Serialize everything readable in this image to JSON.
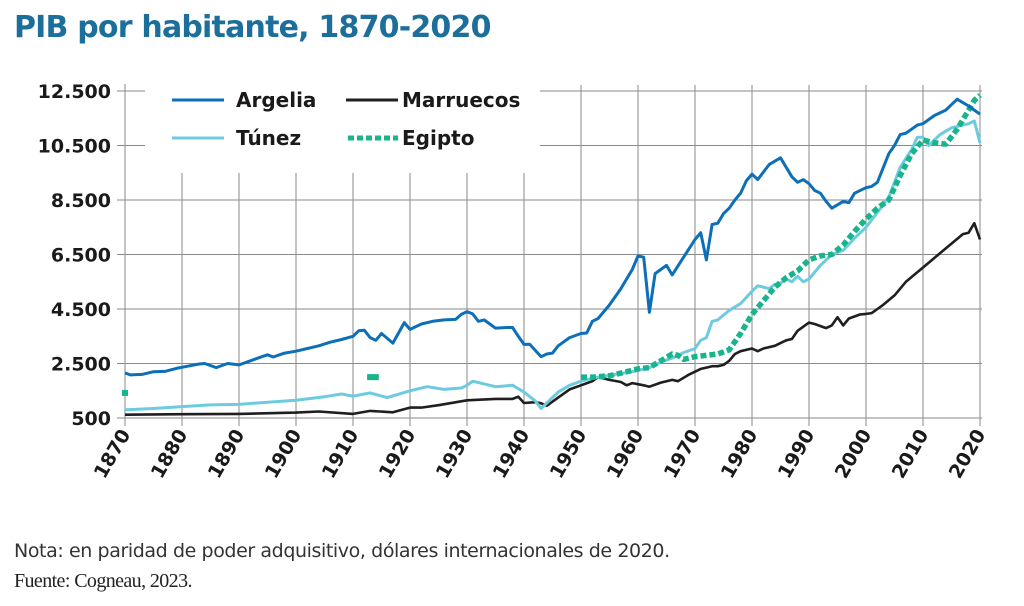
{
  "title": "PIB por habitante, 1870-2020",
  "note": "Nota: en paridad de poder adquisitivo, dólares internacionales de 2020.",
  "source": "Fuente: Cogneau, 2023.",
  "chart_data": {
    "type": "line",
    "title": "PIB por habitante, 1870-2020",
    "xlabel": "",
    "ylabel": "",
    "xlim": [
      1870,
      2020
    ],
    "ylim": [
      500,
      12500
    ],
    "grid": true,
    "legend_position": "top-left",
    "x_ticks": [
      1870,
      1880,
      1890,
      1900,
      1910,
      1920,
      1930,
      1940,
      1950,
      1960,
      1970,
      1980,
      1990,
      2000,
      2010,
      2020
    ],
    "x_tick_labels": [
      "1870",
      "1880",
      "1890",
      "1900",
      "1910",
      "1920",
      "1930",
      "1940",
      "1950",
      "1960",
      "1970",
      "1980",
      "1990",
      "2000",
      "2010",
      "2020"
    ],
    "y_ticks": [
      500,
      2500,
      4500,
      6500,
      8500,
      10500,
      12500
    ],
    "y_tick_labels": [
      "500",
      "2.500",
      "4.500",
      "6.500",
      "8.500",
      "10.500",
      "12.500"
    ],
    "series": [
      {
        "name": "Argelia",
        "color": "#0d6fb8",
        "style": "solid",
        "points": [
          [
            1870,
            2150
          ],
          [
            1871,
            2080
          ],
          [
            1873,
            2100
          ],
          [
            1875,
            2200
          ],
          [
            1877,
            2210
          ],
          [
            1879,
            2320
          ],
          [
            1881,
            2400
          ],
          [
            1883,
            2480
          ],
          [
            1884,
            2500
          ],
          [
            1886,
            2350
          ],
          [
            1888,
            2500
          ],
          [
            1890,
            2450
          ],
          [
            1892,
            2600
          ],
          [
            1894,
            2750
          ],
          [
            1895,
            2820
          ],
          [
            1896,
            2740
          ],
          [
            1898,
            2880
          ],
          [
            1900,
            2950
          ],
          [
            1902,
            3050
          ],
          [
            1904,
            3150
          ],
          [
            1906,
            3280
          ],
          [
            1908,
            3380
          ],
          [
            1910,
            3500
          ],
          [
            1911,
            3700
          ],
          [
            1912,
            3720
          ],
          [
            1913,
            3450
          ],
          [
            1914,
            3350
          ],
          [
            1915,
            3600
          ],
          [
            1917,
            3250
          ],
          [
            1919,
            4000
          ],
          [
            1920,
            3750
          ],
          [
            1922,
            3950
          ],
          [
            1924,
            4050
          ],
          [
            1926,
            4100
          ],
          [
            1928,
            4120
          ],
          [
            1929,
            4300
          ],
          [
            1930,
            4400
          ],
          [
            1931,
            4320
          ],
          [
            1932,
            4050
          ],
          [
            1933,
            4100
          ],
          [
            1935,
            3800
          ],
          [
            1937,
            3820
          ],
          [
            1938,
            3820
          ],
          [
            1939,
            3500
          ],
          [
            1940,
            3200
          ],
          [
            1941,
            3210
          ],
          [
            1943,
            2750
          ],
          [
            1944,
            2850
          ],
          [
            1945,
            2880
          ],
          [
            1946,
            3150
          ],
          [
            1948,
            3450
          ],
          [
            1950,
            3600
          ],
          [
            1951,
            3620
          ],
          [
            1952,
            4050
          ],
          [
            1953,
            4150
          ],
          [
            1955,
            4650
          ],
          [
            1957,
            5250
          ],
          [
            1958,
            5600
          ],
          [
            1959,
            5950
          ],
          [
            1960,
            6450
          ],
          [
            1961,
            6400
          ],
          [
            1962,
            4380
          ],
          [
            1963,
            5800
          ],
          [
            1965,
            6100
          ],
          [
            1966,
            5750
          ],
          [
            1968,
            6400
          ],
          [
            1970,
            7050
          ],
          [
            1971,
            7300
          ],
          [
            1972,
            6300
          ],
          [
            1973,
            7600
          ],
          [
            1974,
            7650
          ],
          [
            1975,
            8000
          ],
          [
            1976,
            8200
          ],
          [
            1977,
            8500
          ],
          [
            1978,
            8750
          ],
          [
            1979,
            9200
          ],
          [
            1980,
            9450
          ],
          [
            1981,
            9250
          ],
          [
            1983,
            9800
          ],
          [
            1985,
            10050
          ],
          [
            1987,
            9350
          ],
          [
            1988,
            9150
          ],
          [
            1989,
            9250
          ],
          [
            1990,
            9100
          ],
          [
            1991,
            8850
          ],
          [
            1992,
            8750
          ],
          [
            1993,
            8450
          ],
          [
            1994,
            8200
          ],
          [
            1996,
            8450
          ],
          [
            1997,
            8400
          ],
          [
            1998,
            8750
          ],
          [
            2000,
            8950
          ],
          [
            2001,
            9000
          ],
          [
            2002,
            9150
          ],
          [
            2004,
            10200
          ],
          [
            2005,
            10500
          ],
          [
            2006,
            10900
          ],
          [
            2007,
            10950
          ],
          [
            2008,
            11100
          ],
          [
            2009,
            11250
          ],
          [
            2010,
            11300
          ],
          [
            2012,
            11600
          ],
          [
            2014,
            11800
          ],
          [
            2016,
            12200
          ],
          [
            2018,
            11950
          ],
          [
            2019,
            11800
          ],
          [
            2020,
            11650
          ]
        ]
      },
      {
        "name": "Marruecos",
        "color": "#1f1f1f",
        "style": "solid",
        "points": [
          [
            1870,
            620
          ],
          [
            1880,
            640
          ],
          [
            1890,
            650
          ],
          [
            1900,
            700
          ],
          [
            1904,
            740
          ],
          [
            1910,
            650
          ],
          [
            1913,
            760
          ],
          [
            1917,
            710
          ],
          [
            1920,
            880
          ],
          [
            1922,
            880
          ],
          [
            1925,
            970
          ],
          [
            1930,
            1150
          ],
          [
            1935,
            1200
          ],
          [
            1938,
            1200
          ],
          [
            1939,
            1280
          ],
          [
            1940,
            1050
          ],
          [
            1942,
            1080
          ],
          [
            1943,
            1040
          ],
          [
            1944,
            950
          ],
          [
            1946,
            1250
          ],
          [
            1948,
            1550
          ],
          [
            1950,
            1700
          ],
          [
            1952,
            1850
          ],
          [
            1953,
            2000
          ],
          [
            1955,
            1900
          ],
          [
            1957,
            1820
          ],
          [
            1958,
            1700
          ],
          [
            1959,
            1780
          ],
          [
            1961,
            1700
          ],
          [
            1962,
            1650
          ],
          [
            1964,
            1800
          ],
          [
            1966,
            1900
          ],
          [
            1967,
            1850
          ],
          [
            1969,
            2100
          ],
          [
            1971,
            2300
          ],
          [
            1972,
            2350
          ],
          [
            1973,
            2400
          ],
          [
            1974,
            2400
          ],
          [
            1975,
            2450
          ],
          [
            1976,
            2600
          ],
          [
            1977,
            2850
          ],
          [
            1978,
            2950
          ],
          [
            1980,
            3050
          ],
          [
            1981,
            2950
          ],
          [
            1982,
            3050
          ],
          [
            1984,
            3150
          ],
          [
            1986,
            3350
          ],
          [
            1987,
            3400
          ],
          [
            1988,
            3700
          ],
          [
            1990,
            4000
          ],
          [
            1991,
            3950
          ],
          [
            1993,
            3800
          ],
          [
            1994,
            3900
          ],
          [
            1995,
            4200
          ],
          [
            1996,
            3900
          ],
          [
            1997,
            4150
          ],
          [
            1999,
            4300
          ],
          [
            2000,
            4320
          ],
          [
            2001,
            4350
          ],
          [
            2002,
            4500
          ],
          [
            2003,
            4650
          ],
          [
            2005,
            5000
          ],
          [
            2007,
            5500
          ],
          [
            2009,
            5850
          ],
          [
            2011,
            6200
          ],
          [
            2013,
            6550
          ],
          [
            2015,
            6900
          ],
          [
            2017,
            7250
          ],
          [
            2018,
            7300
          ],
          [
            2019,
            7650
          ],
          [
            2020,
            7050
          ]
        ]
      },
      {
        "name": "Túnez",
        "color": "#6ccbdf",
        "style": "solid",
        "points": [
          [
            1870,
            800
          ],
          [
            1875,
            850
          ],
          [
            1880,
            920
          ],
          [
            1885,
            980
          ],
          [
            1890,
            1000
          ],
          [
            1895,
            1080
          ],
          [
            1900,
            1150
          ],
          [
            1905,
            1280
          ],
          [
            1908,
            1380
          ],
          [
            1910,
            1300
          ],
          [
            1913,
            1420
          ],
          [
            1916,
            1250
          ],
          [
            1920,
            1500
          ],
          [
            1923,
            1650
          ],
          [
            1926,
            1550
          ],
          [
            1929,
            1600
          ],
          [
            1930,
            1700
          ],
          [
            1931,
            1850
          ],
          [
            1933,
            1750
          ],
          [
            1935,
            1650
          ],
          [
            1938,
            1700
          ],
          [
            1940,
            1450
          ],
          [
            1942,
            1120
          ],
          [
            1943,
            850
          ],
          [
            1944,
            1050
          ],
          [
            1946,
            1450
          ],
          [
            1948,
            1700
          ],
          [
            1950,
            1850
          ],
          [
            1953,
            2000
          ],
          [
            1956,
            2100
          ],
          [
            1959,
            2200
          ],
          [
            1960,
            2250
          ],
          [
            1962,
            2350
          ],
          [
            1964,
            2550
          ],
          [
            1966,
            2700
          ],
          [
            1968,
            2900
          ],
          [
            1970,
            3050
          ],
          [
            1971,
            3350
          ],
          [
            1972,
            3450
          ],
          [
            1973,
            4050
          ],
          [
            1974,
            4100
          ],
          [
            1976,
            4450
          ],
          [
            1978,
            4700
          ],
          [
            1980,
            5150
          ],
          [
            1981,
            5350
          ],
          [
            1983,
            5250
          ],
          [
            1984,
            5400
          ],
          [
            1985,
            5450
          ],
          [
            1986,
            5600
          ],
          [
            1987,
            5500
          ],
          [
            1988,
            5700
          ],
          [
            1989,
            5500
          ],
          [
            1990,
            5600
          ],
          [
            1992,
            6100
          ],
          [
            1994,
            6500
          ],
          [
            1996,
            6650
          ],
          [
            1998,
            7100
          ],
          [
            2000,
            7500
          ],
          [
            2002,
            8050
          ],
          [
            2004,
            8600
          ],
          [
            2006,
            9700
          ],
          [
            2008,
            10350
          ],
          [
            2009,
            10800
          ],
          [
            2010,
            10800
          ],
          [
            2011,
            10500
          ],
          [
            2013,
            10900
          ],
          [
            2015,
            11150
          ],
          [
            2017,
            11250
          ],
          [
            2018,
            11300
          ],
          [
            2019,
            11400
          ],
          [
            2020,
            10600
          ]
        ]
      },
      {
        "name": "Egipto",
        "color": "#18b48c",
        "style": "dotted",
        "points": [
          [
            1870,
            1420
          ],
          [
            1913,
            2000
          ],
          [
            1914,
            2000
          ],
          [
            1950,
            2000
          ],
          [
            1952,
            2000
          ],
          [
            1955,
            2050
          ],
          [
            1958,
            2200
          ],
          [
            1960,
            2300
          ],
          [
            1962,
            2350
          ],
          [
            1964,
            2600
          ],
          [
            1966,
            2850
          ],
          [
            1967,
            2800
          ],
          [
            1968,
            2650
          ],
          [
            1970,
            2750
          ],
          [
            1972,
            2800
          ],
          [
            1974,
            2850
          ],
          [
            1976,
            3000
          ],
          [
            1978,
            3600
          ],
          [
            1980,
            4300
          ],
          [
            1982,
            4800
          ],
          [
            1984,
            5300
          ],
          [
            1986,
            5650
          ],
          [
            1988,
            5900
          ],
          [
            1990,
            6300
          ],
          [
            1992,
            6450
          ],
          [
            1994,
            6500
          ],
          [
            1996,
            6850
          ],
          [
            1998,
            7350
          ],
          [
            2000,
            7800
          ],
          [
            2002,
            8200
          ],
          [
            2003,
            8350
          ],
          [
            2004,
            8500
          ],
          [
            2006,
            9400
          ],
          [
            2008,
            10200
          ],
          [
            2010,
            10700
          ],
          [
            2012,
            10600
          ],
          [
            2014,
            10550
          ],
          [
            2016,
            11100
          ],
          [
            2018,
            11800
          ],
          [
            2019,
            12150
          ],
          [
            2020,
            12350
          ]
        ],
        "isolated_points": [
          [
            1870,
            1420
          ],
          [
            1913,
            2000
          ],
          [
            1914,
            2000
          ]
        ]
      }
    ]
  }
}
